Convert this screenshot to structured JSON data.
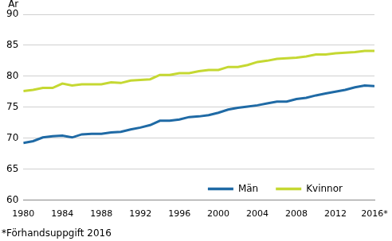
{
  "chart_data": {
    "type": "line",
    "y_label": "År",
    "footnote": "*Förhandsuppgift 2016",
    "x": [
      1980,
      1981,
      1982,
      1983,
      1984,
      1985,
      1986,
      1987,
      1988,
      1989,
      1990,
      1991,
      1992,
      1993,
      1994,
      1995,
      1996,
      1997,
      1998,
      1999,
      2000,
      2001,
      2002,
      2003,
      2004,
      2005,
      2006,
      2007,
      2008,
      2009,
      2010,
      2011,
      2012,
      2013,
      2014,
      2015,
      2016
    ],
    "series": [
      {
        "name": "Män",
        "color": "#1f6aa5",
        "values": [
          69.2,
          69.5,
          70.1,
          70.3,
          70.4,
          70.1,
          70.6,
          70.7,
          70.7,
          70.9,
          71.0,
          71.4,
          71.7,
          72.1,
          72.8,
          72.8,
          73.0,
          73.4,
          73.5,
          73.7,
          74.1,
          74.6,
          74.9,
          75.1,
          75.3,
          75.6,
          75.9,
          75.9,
          76.3,
          76.5,
          76.9,
          77.2,
          77.5,
          77.8,
          78.2,
          78.5,
          78.4
        ]
      },
      {
        "name": "Kvinnor",
        "color": "#c5d832",
        "values": [
          77.6,
          77.8,
          78.1,
          78.1,
          78.8,
          78.5,
          78.7,
          78.7,
          78.7,
          79.0,
          78.9,
          79.3,
          79.4,
          79.5,
          80.2,
          80.2,
          80.5,
          80.5,
          80.8,
          81.0,
          81.0,
          81.5,
          81.5,
          81.8,
          82.3,
          82.5,
          82.8,
          82.9,
          83.0,
          83.2,
          83.5,
          83.5,
          83.7,
          83.8,
          83.9,
          84.1,
          84.1
        ]
      }
    ],
    "xlim": [
      1980,
      2016
    ],
    "xticks": [
      1980,
      1984,
      1988,
      1992,
      1996,
      2000,
      2004,
      2008,
      2012,
      {
        "value": 2016,
        "label": "2016*"
      }
    ],
    "ylim": [
      60,
      90
    ],
    "yticks": [
      60,
      65,
      70,
      75,
      80,
      85,
      90
    ],
    "grid": true,
    "legend": "lower right"
  }
}
